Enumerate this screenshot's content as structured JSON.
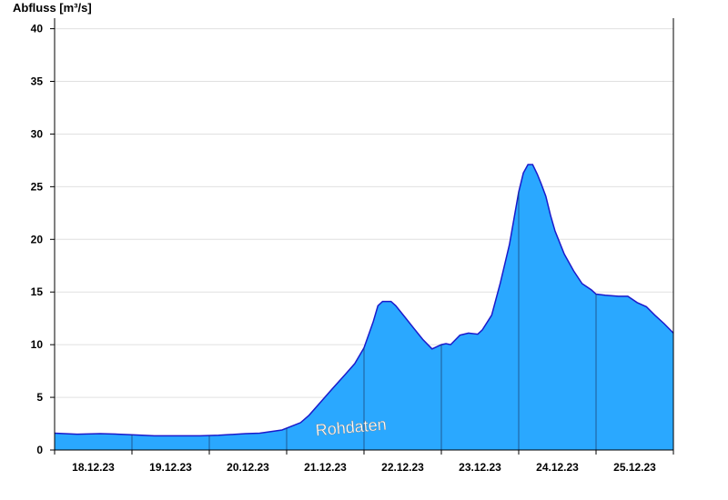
{
  "chart_data": {
    "type": "area",
    "ylabel": "Abfluss [m³/s]",
    "ylim": [
      0,
      41
    ],
    "yticks": [
      0,
      5,
      10,
      15,
      20,
      25,
      30,
      35,
      40
    ],
    "xlim": [
      0,
      8.0
    ],
    "xticks": [
      {
        "x": 0.5,
        "label": "18.12.23"
      },
      {
        "x": 1.5,
        "label": "19.12.23"
      },
      {
        "x": 2.5,
        "label": "20.12.23"
      },
      {
        "x": 3.5,
        "label": "21.12.23"
      },
      {
        "x": 4.5,
        "label": "22.12.23"
      },
      {
        "x": 5.5,
        "label": "23.12.23"
      },
      {
        "x": 6.5,
        "label": "24.12.23"
      },
      {
        "x": 7.5,
        "label": "25.12.23"
      }
    ],
    "grid": true,
    "annotation": "Rohdaten",
    "colors": {
      "fill": "#2aa8ff",
      "line": "#1a1acc",
      "axis": "#000000",
      "grid": "#e0e0e0",
      "divider": "#1a3a6a"
    },
    "series": [
      {
        "x": [
          0.0,
          0.29,
          0.59,
          0.82,
          1.0,
          1.29,
          1.59,
          1.88,
          2.12,
          2.35,
          2.47,
          2.65,
          2.94,
          3.18,
          3.29,
          3.47,
          3.59,
          3.76,
          3.88,
          4.0,
          4.12,
          4.18,
          4.24,
          4.29,
          4.35,
          4.41,
          4.53,
          4.65,
          4.76,
          4.88,
          5.0,
          5.06,
          5.12,
          5.24,
          5.35,
          5.47,
          5.53,
          5.65,
          5.76,
          5.88,
          5.94,
          6.0,
          6.06,
          6.12,
          6.18,
          6.24,
          6.29,
          6.35,
          6.41,
          6.47,
          6.59,
          6.71,
          6.82,
          6.94,
          7.0,
          7.12,
          7.29,
          7.41,
          7.53,
          7.65,
          7.76,
          7.88,
          8.0
        ],
        "y": [
          1.6,
          1.5,
          1.55,
          1.5,
          1.45,
          1.35,
          1.35,
          1.35,
          1.4,
          1.5,
          1.55,
          1.6,
          1.9,
          2.6,
          3.3,
          4.8,
          5.8,
          7.2,
          8.2,
          9.7,
          12.2,
          13.7,
          14.1,
          14.1,
          14.1,
          13.7,
          12.6,
          11.5,
          10.5,
          9.6,
          10.0,
          10.1,
          10.0,
          10.9,
          11.1,
          11.0,
          11.4,
          12.8,
          15.8,
          19.5,
          22.0,
          24.5,
          26.3,
          27.1,
          27.1,
          26.2,
          25.3,
          24.1,
          22.3,
          20.8,
          18.6,
          17.0,
          15.8,
          15.2,
          14.8,
          14.7,
          14.6,
          14.6,
          14.0,
          13.6,
          12.8,
          12.0,
          11.1
        ]
      }
    ]
  }
}
